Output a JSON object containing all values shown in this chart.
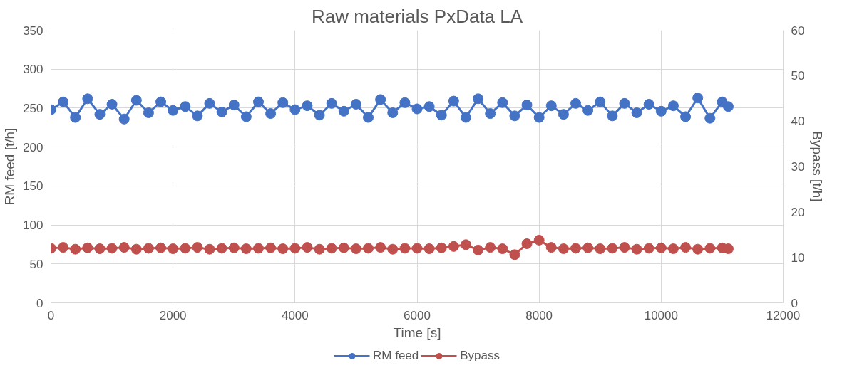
{
  "chart_data": {
    "type": "line",
    "title": "Raw materials PxData LA",
    "xlabel": "Time [s]",
    "ylabel": "RM feed [t/h]",
    "y2label": "Bypass [t/h]",
    "xlim": [
      0,
      12000
    ],
    "xticks": [
      0,
      2000,
      4000,
      6000,
      8000,
      10000,
      12000
    ],
    "ylim": [
      0,
      350
    ],
    "yticks": [
      0,
      50,
      100,
      150,
      200,
      250,
      300,
      350
    ],
    "y2lim": [
      0,
      60
    ],
    "y2ticks": [
      0,
      10,
      20,
      30,
      40,
      50,
      60
    ],
    "grid": true,
    "legend": "bottom",
    "marker": "circle",
    "line_style": "solid",
    "x": [
      0,
      200,
      400,
      600,
      800,
      1000,
      1200,
      1400,
      1600,
      1800,
      2000,
      2200,
      2400,
      2600,
      2800,
      3000,
      3200,
      3400,
      3600,
      3800,
      4000,
      4200,
      4400,
      4600,
      4800,
      5000,
      5200,
      5400,
      5600,
      5800,
      6000,
      6200,
      6400,
      6600,
      6800,
      7000,
      7200,
      7400,
      7600,
      7800,
      8000,
      8200,
      8400,
      8600,
      8800,
      9000,
      9200,
      9400,
      9600,
      9800,
      10000,
      10200,
      10400,
      10600,
      10800,
      11000,
      11100
    ],
    "series": [
      {
        "name": "RM feed",
        "color": "#4472c4",
        "values": [
          248,
          258,
          238,
          262,
          242,
          255,
          236,
          260,
          244,
          258,
          247,
          252,
          240,
          256,
          245,
          254,
          239,
          258,
          243,
          257,
          248,
          253,
          241,
          256,
          246,
          255,
          238,
          261,
          244,
          257,
          249,
          252,
          241,
          259,
          238,
          262,
          243,
          257,
          240,
          254,
          238,
          253,
          242,
          256,
          247,
          258,
          240,
          256,
          244,
          255,
          246,
          253,
          239,
          263,
          237,
          258,
          252
        ]
      },
      {
        "name": "Bypass",
        "color": "#c0504d",
        "axis": "y2",
        "values": [
          12,
          12.2,
          11.8,
          12.1,
          11.9,
          12,
          12.2,
          11.8,
          12,
          12.1,
          11.9,
          12,
          12.2,
          11.8,
          12,
          12.1,
          11.9,
          12,
          12.1,
          11.9,
          12,
          12.2,
          11.8,
          12,
          12.1,
          11.9,
          12,
          12.2,
          11.8,
          12,
          12,
          11.9,
          12.1,
          12.4,
          12.8,
          11.6,
          12.2,
          11.9,
          10.6,
          13,
          13.8,
          12.2,
          11.9,
          12,
          12.1,
          11.9,
          12,
          12.2,
          11.8,
          12,
          12.1,
          11.9,
          12.2,
          11.8,
          12,
          12.1,
          11.9
        ]
      }
    ]
  }
}
